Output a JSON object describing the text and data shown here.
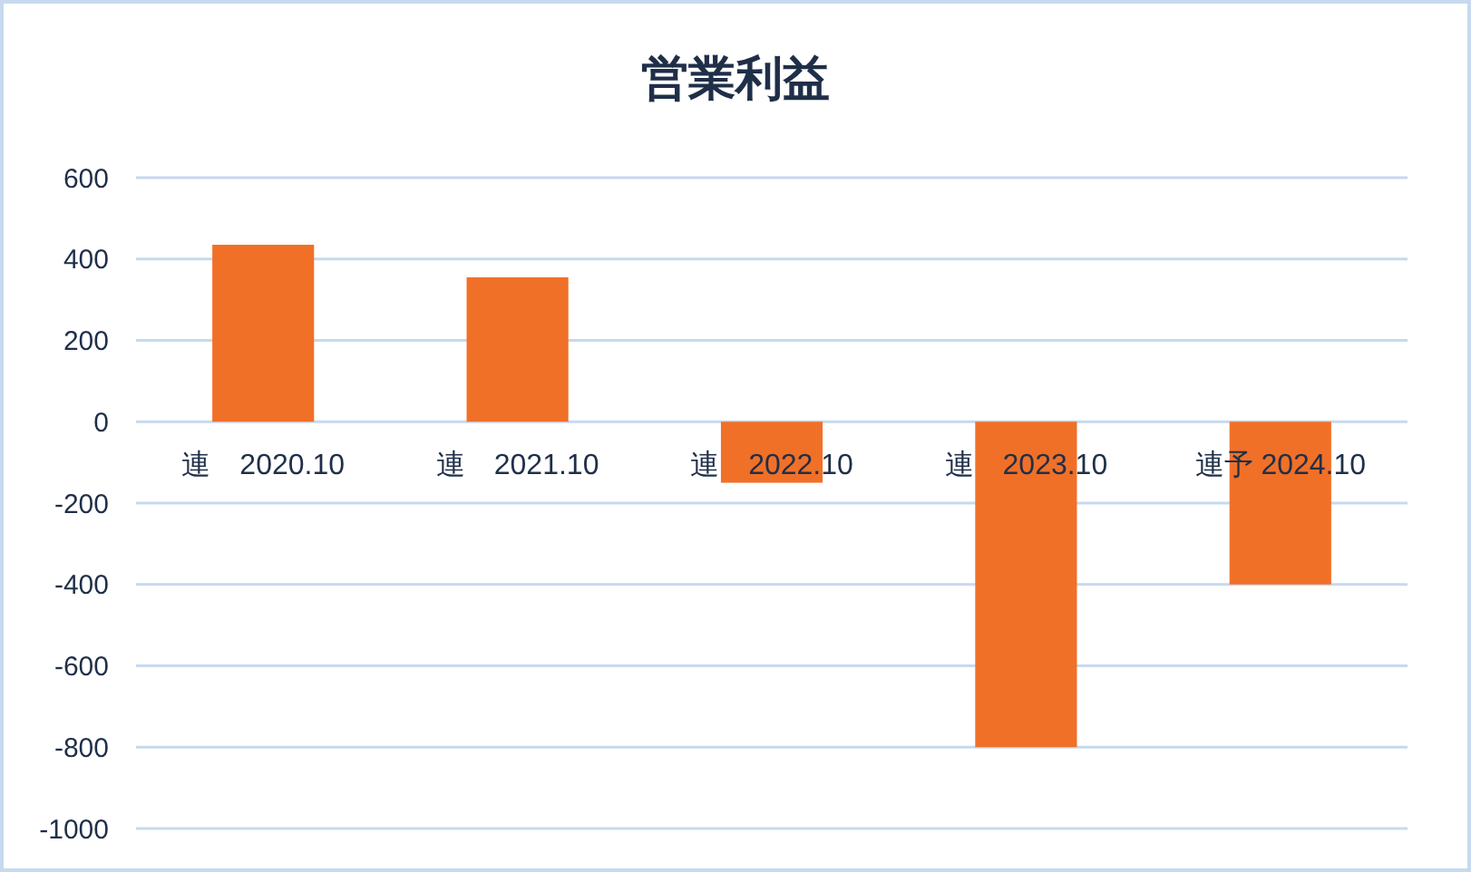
{
  "chart_data": {
    "type": "bar",
    "title": "営業利益",
    "categories": [
      "連　2020.10",
      "連　2021.10",
      "連　2022.10",
      "連　2023.10",
      "連予 2024.10"
    ],
    "values": [
      435,
      355,
      -150,
      -800,
      -400
    ],
    "color": "#f07028",
    "ylim": [
      -1000,
      600
    ],
    "yticks": [
      -1000,
      -800,
      -600,
      -400,
      -200,
      0,
      200,
      400,
      600
    ],
    "grid": "y"
  }
}
